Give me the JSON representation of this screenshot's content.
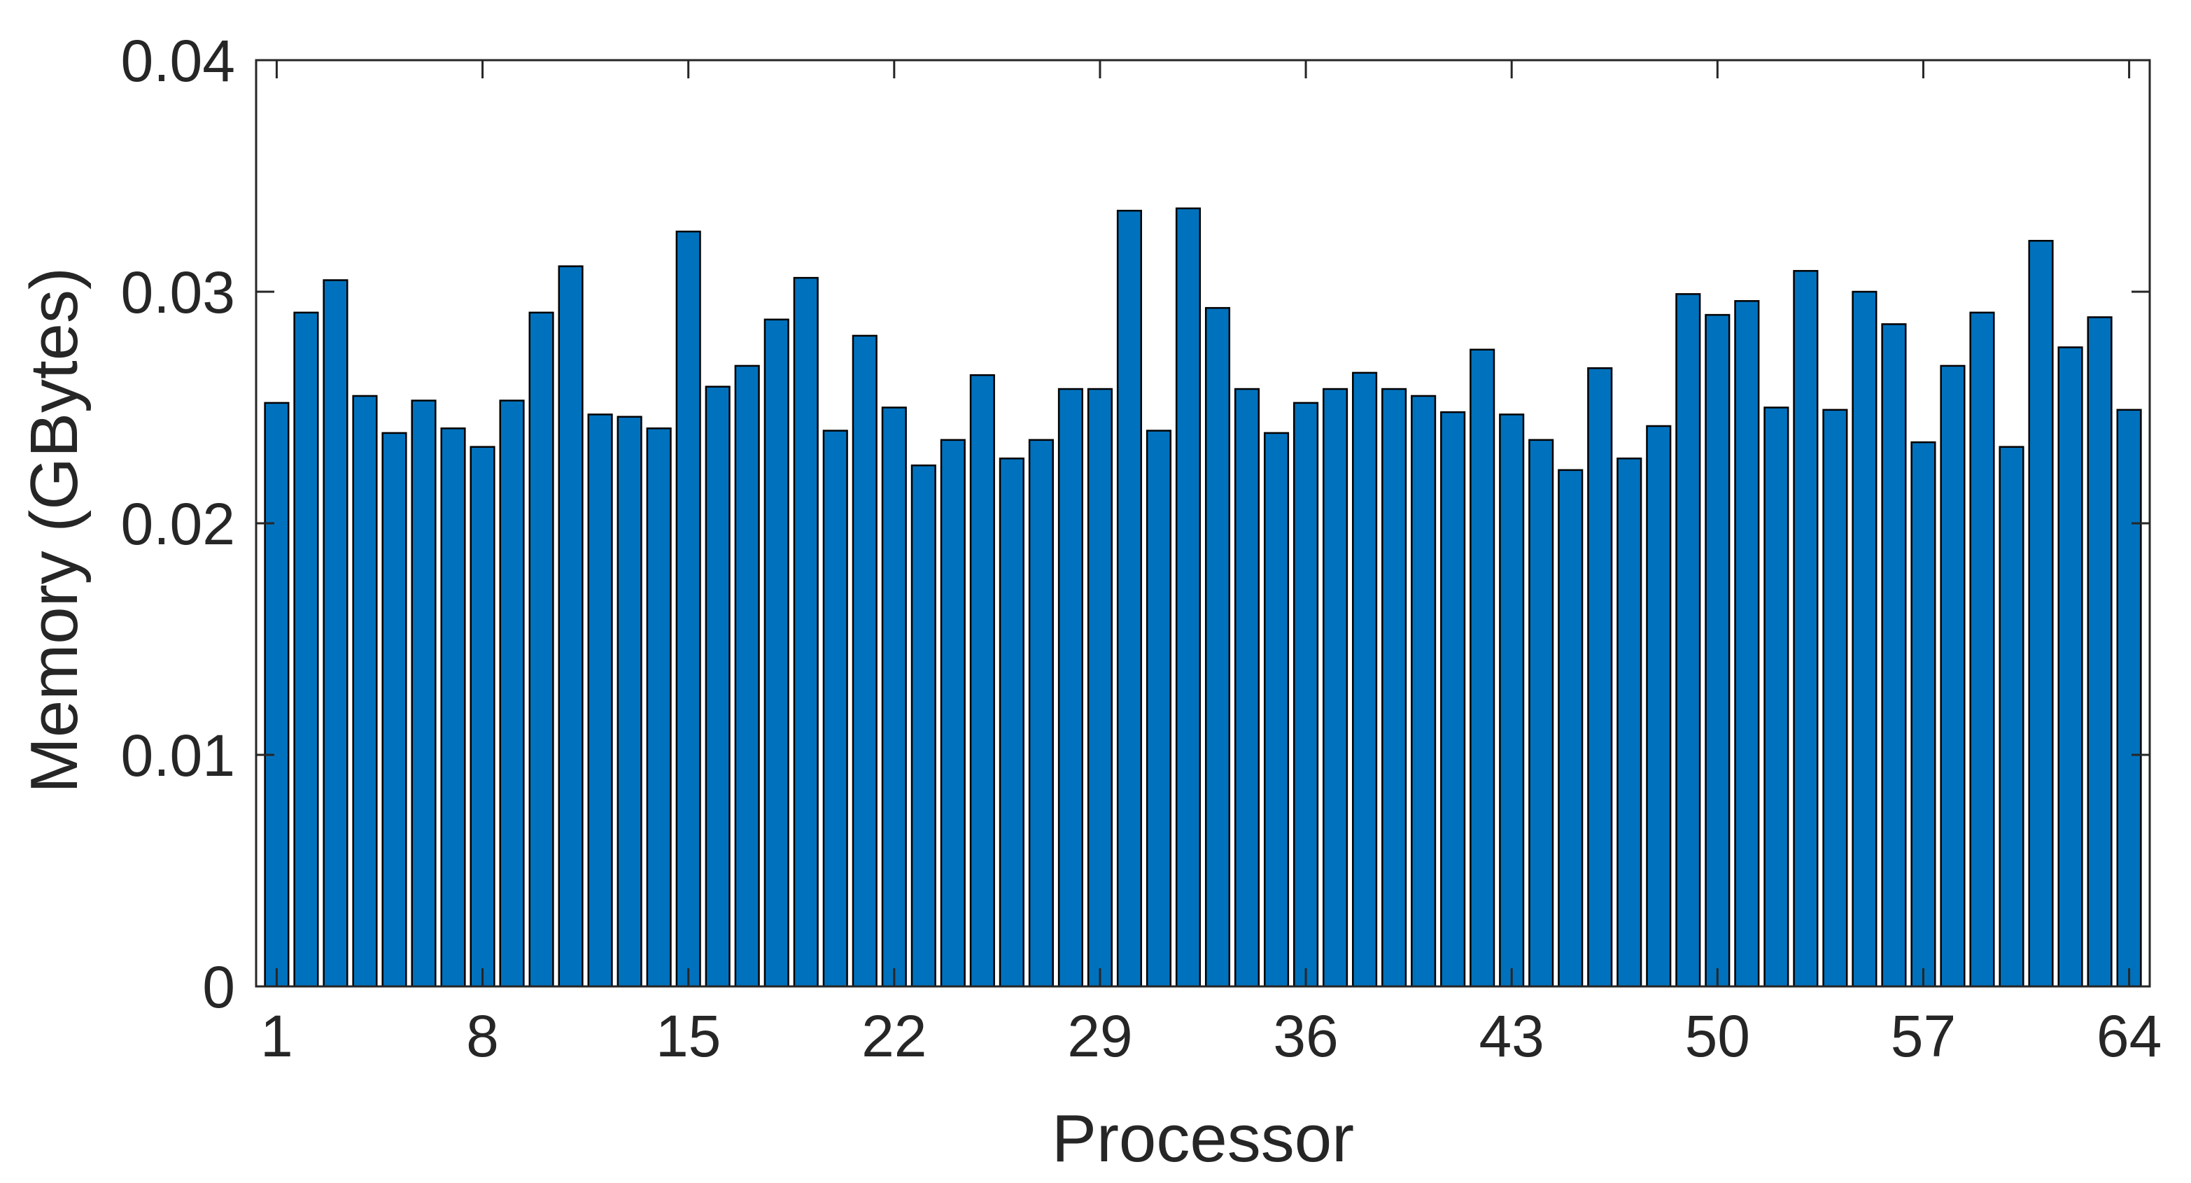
{
  "chart_data": {
    "type": "bar",
    "xlabel": "Processor",
    "ylabel": "Memory (GBytes)",
    "xlim": [
      0.3,
      64.7
    ],
    "ylim": [
      0,
      0.04
    ],
    "x_ticks": [
      1,
      8,
      15,
      22,
      29,
      36,
      43,
      50,
      57,
      64
    ],
    "x_tick_labels": [
      "1",
      "8",
      "15",
      "22",
      "29",
      "36",
      "43",
      "50",
      "57",
      "64"
    ],
    "y_ticks": [
      0,
      0.01,
      0.02,
      0.03,
      0.04
    ],
    "y_tick_labels": [
      "0",
      "0.01",
      "0.02",
      "0.03",
      "0.04"
    ],
    "grid": false,
    "box": true,
    "bar_color": "#0072BD",
    "edge_color": "#000000",
    "categories": [
      1,
      2,
      3,
      4,
      5,
      6,
      7,
      8,
      9,
      10,
      11,
      12,
      13,
      14,
      15,
      16,
      17,
      18,
      19,
      20,
      21,
      22,
      23,
      24,
      25,
      26,
      27,
      28,
      29,
      30,
      31,
      32,
      33,
      34,
      35,
      36,
      37,
      38,
      39,
      40,
      41,
      42,
      43,
      44,
      45,
      46,
      47,
      48,
      49,
      50,
      51,
      52,
      53,
      54,
      55,
      56,
      57,
      58,
      59,
      60,
      61,
      62,
      63,
      64
    ],
    "values": [
      0.0252,
      0.0291,
      0.0305,
      0.0255,
      0.0239,
      0.0253,
      0.0241,
      0.0233,
      0.0253,
      0.0291,
      0.0311,
      0.0247,
      0.0246,
      0.0241,
      0.0326,
      0.0259,
      0.0268,
      0.0288,
      0.0306,
      0.024,
      0.0281,
      0.025,
      0.0225,
      0.0236,
      0.0264,
      0.0228,
      0.0236,
      0.0258,
      0.0258,
      0.0335,
      0.024,
      0.0336,
      0.0293,
      0.0258,
      0.0239,
      0.0252,
      0.0258,
      0.0265,
      0.0258,
      0.0255,
      0.0248,
      0.0275,
      0.0247,
      0.0236,
      0.0223,
      0.0267,
      0.0228,
      0.0242,
      0.0299,
      0.029,
      0.0296,
      0.025,
      0.0309,
      0.0249,
      0.03,
      0.0286,
      0.0235,
      0.0268,
      0.0291,
      0.0233,
      0.0322,
      0.0276,
      0.0289,
      0.0249
    ]
  }
}
